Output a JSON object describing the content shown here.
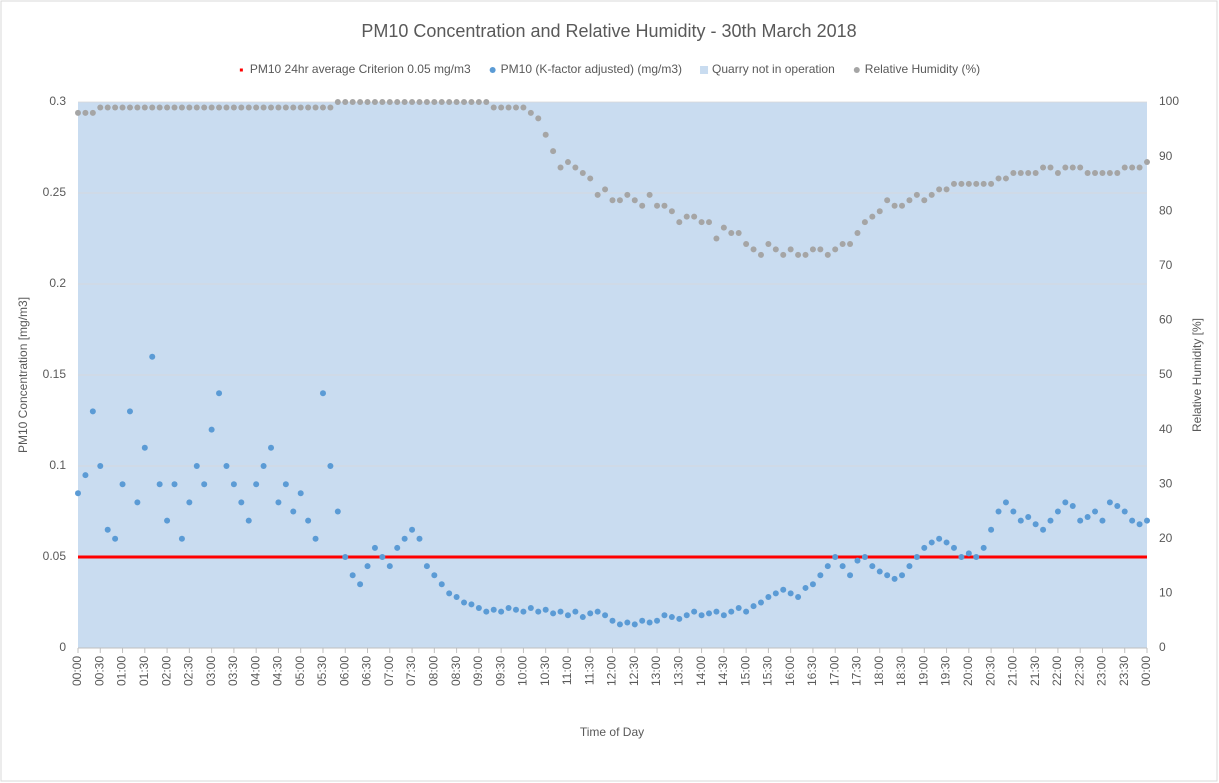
{
  "chart_data": {
    "type": "scatter",
    "title": "PM10 Concentration and Relative Humidity - 30th March 2018",
    "x_label": "Time of Day",
    "y_label": "PM10 Concentration [mg/m3]",
    "y2_label": "Relative Humidity [%]",
    "grid": true,
    "legend": "top",
    "xlim": [
      0,
      1440
    ],
    "xticks": [
      {
        "value": 0,
        "label": "00:00"
      },
      {
        "value": 30,
        "label": "00:30"
      },
      {
        "value": 60,
        "label": "01:00"
      },
      {
        "value": 90,
        "label": "01:30"
      },
      {
        "value": 120,
        "label": "02:00"
      },
      {
        "value": 150,
        "label": "02:30"
      },
      {
        "value": 180,
        "label": "03:00"
      },
      {
        "value": 210,
        "label": "03:30"
      },
      {
        "value": 240,
        "label": "04:00"
      },
      {
        "value": 270,
        "label": "04:30"
      },
      {
        "value": 300,
        "label": "05:00"
      },
      {
        "value": 330,
        "label": "05:30"
      },
      {
        "value": 360,
        "label": "06:00"
      },
      {
        "value": 390,
        "label": "06:30"
      },
      {
        "value": 420,
        "label": "07:00"
      },
      {
        "value": 450,
        "label": "07:30"
      },
      {
        "value": 480,
        "label": "08:00"
      },
      {
        "value": 510,
        "label": "08:30"
      },
      {
        "value": 540,
        "label": "09:00"
      },
      {
        "value": 570,
        "label": "09:30"
      },
      {
        "value": 600,
        "label": "10:00"
      },
      {
        "value": 630,
        "label": "10:30"
      },
      {
        "value": 660,
        "label": "11:00"
      },
      {
        "value": 690,
        "label": "11:30"
      },
      {
        "value": 720,
        "label": "12:00"
      },
      {
        "value": 750,
        "label": "12:30"
      },
      {
        "value": 780,
        "label": "13:00"
      },
      {
        "value": 810,
        "label": "13:30"
      },
      {
        "value": 840,
        "label": "14:00"
      },
      {
        "value": 870,
        "label": "14:30"
      },
      {
        "value": 900,
        "label": "15:00"
      },
      {
        "value": 930,
        "label": "15:30"
      },
      {
        "value": 960,
        "label": "16:00"
      },
      {
        "value": 990,
        "label": "16:30"
      },
      {
        "value": 1020,
        "label": "17:00"
      },
      {
        "value": 1050,
        "label": "17:30"
      },
      {
        "value": 1080,
        "label": "18:00"
      },
      {
        "value": 1110,
        "label": "18:30"
      },
      {
        "value": 1140,
        "label": "19:00"
      },
      {
        "value": 1170,
        "label": "19:30"
      },
      {
        "value": 1200,
        "label": "20:00"
      },
      {
        "value": 1230,
        "label": "20:30"
      },
      {
        "value": 1260,
        "label": "21:00"
      },
      {
        "value": 1290,
        "label": "21:30"
      },
      {
        "value": 1320,
        "label": "22:00"
      },
      {
        "value": 1350,
        "label": "22:30"
      },
      {
        "value": 1380,
        "label": "23:00"
      },
      {
        "value": 1410,
        "label": "23:30"
      },
      {
        "value": 1440,
        "label": "00:00"
      }
    ],
    "ylim": [
      0,
      0.3
    ],
    "yticks": [
      0,
      0.05,
      0.1,
      0.15,
      0.2,
      0.25,
      0.3
    ],
    "y2lim": [
      0,
      100
    ],
    "y2ticks": [
      0,
      10,
      20,
      30,
      40,
      50,
      60,
      70,
      80,
      90,
      100
    ],
    "x": [
      0,
      10,
      20,
      30,
      40,
      50,
      60,
      70,
      80,
      90,
      100,
      110,
      120,
      130,
      140,
      150,
      160,
      170,
      180,
      190,
      200,
      210,
      220,
      230,
      240,
      250,
      260,
      270,
      280,
      290,
      300,
      310,
      320,
      330,
      340,
      350,
      360,
      370,
      380,
      390,
      400,
      410,
      420,
      430,
      440,
      450,
      460,
      470,
      480,
      490,
      500,
      510,
      520,
      530,
      540,
      550,
      560,
      570,
      580,
      590,
      600,
      610,
      620,
      630,
      640,
      650,
      660,
      670,
      680,
      690,
      700,
      710,
      720,
      730,
      740,
      750,
      760,
      770,
      780,
      790,
      800,
      810,
      820,
      830,
      840,
      850,
      860,
      870,
      880,
      890,
      900,
      910,
      920,
      930,
      940,
      950,
      960,
      970,
      980,
      990,
      1000,
      1010,
      1020,
      1030,
      1040,
      1050,
      1060,
      1070,
      1080,
      1090,
      1100,
      1110,
      1120,
      1130,
      1140,
      1150,
      1160,
      1170,
      1180,
      1190,
      1200,
      1210,
      1220,
      1230,
      1240,
      1250,
      1260,
      1270,
      1280,
      1290,
      1300,
      1310,
      1320,
      1330,
      1340,
      1350,
      1360,
      1370,
      1380,
      1390,
      1400,
      1410,
      1420,
      1430,
      1440
    ],
    "series": [
      {
        "name": "PM10 24hr average Criterion 0.05 mg/m3",
        "type": "line",
        "color": "#ff0000",
        "x": [
          0,
          1440
        ],
        "values": [
          0.05,
          0.05
        ]
      },
      {
        "name": "PM10 (K-factor adjusted) (mg/m3)",
        "type": "scatter",
        "color": "#5b9bd5",
        "values": [
          0.085,
          0.095,
          0.13,
          0.1,
          0.065,
          0.06,
          0.09,
          0.13,
          0.08,
          0.11,
          0.16,
          0.09,
          0.07,
          0.09,
          0.06,
          0.08,
          0.1,
          0.09,
          0.12,
          0.14,
          0.1,
          0.09,
          0.08,
          0.07,
          0.09,
          0.1,
          0.11,
          0.08,
          0.09,
          0.075,
          0.085,
          0.07,
          0.06,
          0.14,
          0.1,
          0.075,
          0.05,
          0.04,
          0.035,
          0.045,
          0.055,
          0.05,
          0.045,
          0.055,
          0.06,
          0.065,
          0.06,
          0.045,
          0.04,
          0.035,
          0.03,
          0.028,
          0.025,
          0.024,
          0.022,
          0.02,
          0.021,
          0.02,
          0.022,
          0.021,
          0.02,
          0.022,
          0.02,
          0.021,
          0.019,
          0.02,
          0.018,
          0.02,
          0.017,
          0.019,
          0.02,
          0.018,
          0.015,
          0.013,
          0.014,
          0.013,
          0.015,
          0.014,
          0.015,
          0.018,
          0.017,
          0.016,
          0.018,
          0.02,
          0.018,
          0.019,
          0.02,
          0.018,
          0.02,
          0.022,
          0.02,
          0.023,
          0.025,
          0.028,
          0.03,
          0.032,
          0.03,
          0.028,
          0.033,
          0.035,
          0.04,
          0.045,
          0.05,
          0.045,
          0.04,
          0.048,
          0.05,
          0.045,
          0.042,
          0.04,
          0.038,
          0.04,
          0.045,
          0.05,
          0.055,
          0.058,
          0.06,
          0.058,
          0.055,
          0.05,
          0.052,
          0.05,
          0.055,
          0.065,
          0.075,
          0.08,
          0.075,
          0.07,
          0.072,
          0.068,
          0.065,
          0.07,
          0.075,
          0.08,
          0.078,
          0.07,
          0.072,
          0.075,
          0.07,
          0.08,
          0.078,
          0.075,
          0.07,
          0.068,
          0.07
        ]
      },
      {
        "name": "Quarry not in operation",
        "type": "area",
        "color": "#c9dcf0",
        "x": [
          0,
          1440
        ],
        "values": [
          0.3,
          0.3
        ]
      },
      {
        "name": "Relative Humidity (%)",
        "type": "scatter",
        "color": "#a5a5a5",
        "axis": "y2",
        "values": [
          98,
          98,
          98,
          99,
          99,
          99,
          99,
          99,
          99,
          99,
          99,
          99,
          99,
          99,
          99,
          99,
          99,
          99,
          99,
          99,
          99,
          99,
          99,
          99,
          99,
          99,
          99,
          99,
          99,
          99,
          99,
          99,
          99,
          99,
          99,
          100,
          100,
          100,
          100,
          100,
          100,
          100,
          100,
          100,
          100,
          100,
          100,
          100,
          100,
          100,
          100,
          100,
          100,
          100,
          100,
          100,
          99,
          99,
          99,
          99,
          99,
          98,
          97,
          94,
          91,
          88,
          89,
          88,
          87,
          86,
          83,
          84,
          82,
          82,
          83,
          82,
          81,
          83,
          81,
          81,
          80,
          78,
          79,
          79,
          78,
          78,
          75,
          77,
          76,
          76,
          74,
          73,
          72,
          74,
          73,
          72,
          73,
          72,
          72,
          73,
          73,
          72,
          73,
          74,
          74,
          76,
          78,
          79,
          80,
          82,
          81,
          81,
          82,
          83,
          82,
          83,
          84,
          84,
          85,
          85,
          85,
          85,
          85,
          85,
          86,
          86,
          87,
          87,
          87,
          87,
          88,
          88,
          87,
          88,
          88,
          88,
          87,
          87,
          87,
          87,
          87,
          88,
          88,
          88,
          89
        ]
      }
    ]
  }
}
